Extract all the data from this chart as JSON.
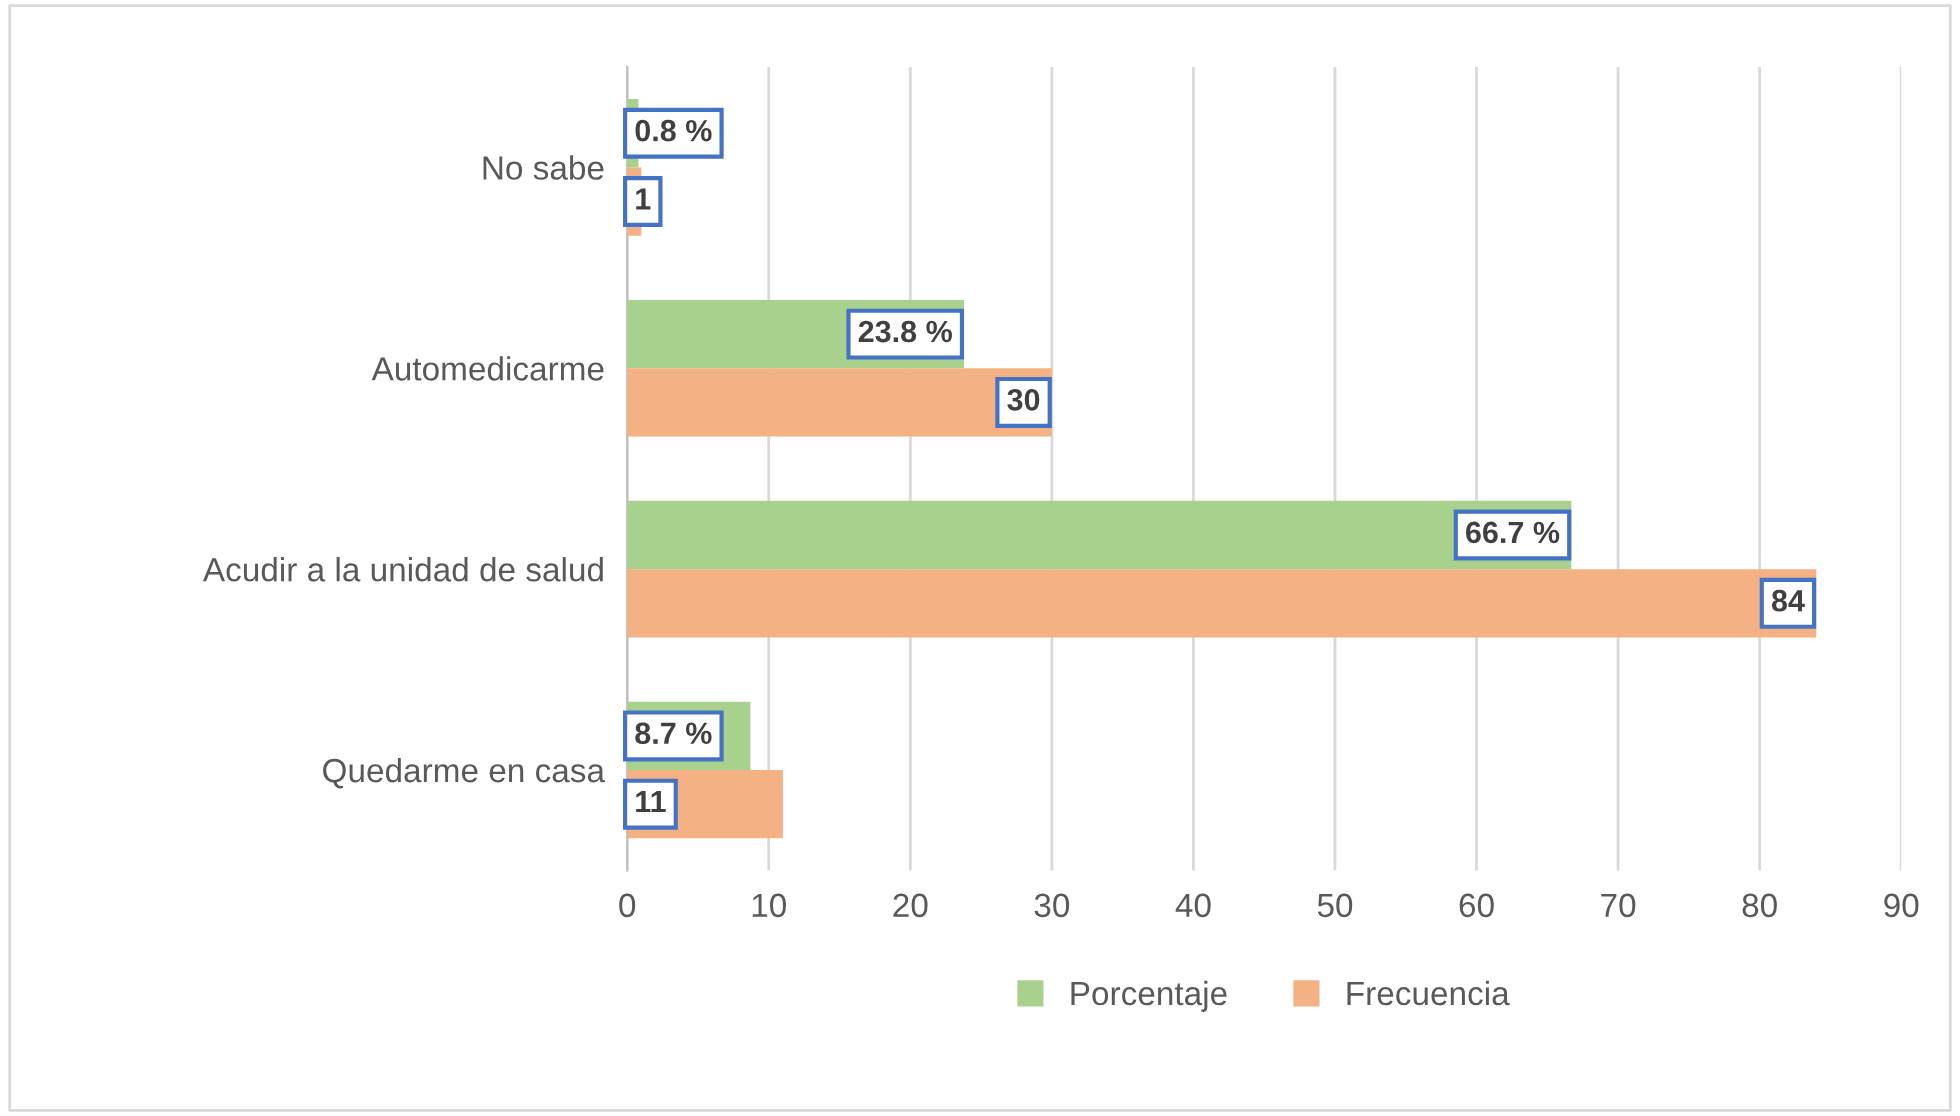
{
  "chart_data": {
    "type": "bar",
    "orientation": "horizontal",
    "categories": [
      "No sabe",
      "Automedicarme",
      "Acudir a la unidad de salud",
      "Quedarme en casa"
    ],
    "series": [
      {
        "name": "Porcentaje",
        "color": "#a9d18e",
        "values": [
          0.8,
          23.8,
          66.7,
          8.7
        ],
        "value_labels": [
          "0.8 %",
          "23.8 %",
          "66.7 %",
          "8.7 %"
        ]
      },
      {
        "name": "Frecuencia",
        "color": "#f4b183",
        "values": [
          1,
          30,
          84,
          11
        ],
        "value_labels": [
          "1",
          "30",
          "84",
          "11"
        ]
      }
    ],
    "xlim": [
      0,
      90
    ],
    "xticks": [
      0,
      10,
      20,
      30,
      40,
      50,
      60,
      70,
      80,
      90
    ],
    "grid": "x",
    "legend": "bottom"
  }
}
